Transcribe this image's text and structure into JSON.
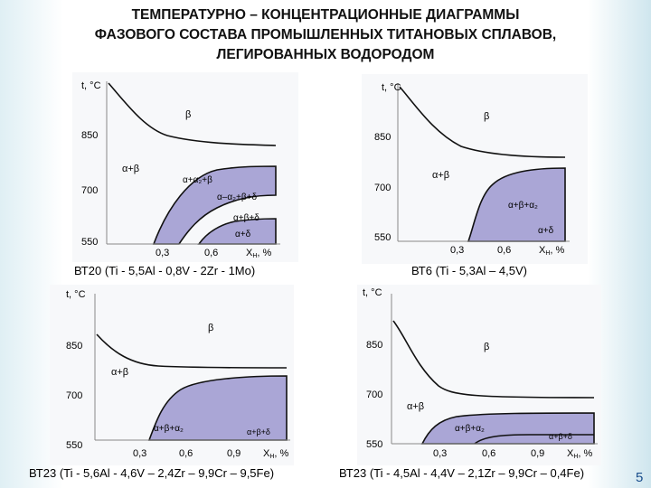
{
  "title": "ТЕМПЕРАТУРНО – КОНЦЕНТРАЦИОННЫЕ  ДИАГРАММЫ\nФАЗОВОГО СОСТАВА ПРОМЫШЛЕННЫХ ТИТАНОВЫХ СПЛАВОВ,\nЛЕГИРОВАННЫХ ВОДОРОДОМ",
  "colors": {
    "phase_fill": "#aaa6d6",
    "curve": "#111111",
    "accent": "#1a4e8c"
  },
  "axis": {
    "ylabel": "t, °C",
    "xlabel": "X",
    "xlabel_sub": "H",
    "xunit": ", %"
  },
  "slide_number": "5",
  "panels": [
    {
      "caption": "ВТ20 (Ti - 5,5Al - 0,8V - 2Zr - 1Mo)",
      "yticks": [
        "850",
        "700",
        "550"
      ],
      "xticks": [
        "0,3",
        "0,6"
      ],
      "labels": [
        "β",
        "α+β",
        "α+α₂+β",
        "α–α₂+β+δ",
        "α+β+δ",
        "α+δ"
      ]
    },
    {
      "caption": "ВТ6 (Ti - 5,3Al – 4,5V)",
      "yticks": [
        "850",
        "700",
        "550"
      ],
      "xticks": [
        "0,3",
        "0,6"
      ],
      "labels": [
        "β",
        "α+β",
        "α+β+α₂",
        "α+δ"
      ]
    },
    {
      "caption": "ВТ23 (Ti - 5,6Al - 4,6V – 2,4Zr – 9,9Cr – 9,5Fe)",
      "yticks": [
        "850",
        "700",
        "550"
      ],
      "xticks": [
        "0,3",
        "0,6",
        "0,9"
      ],
      "labels": [
        "β",
        "α+β",
        "α+β+α₂",
        "α+β+δ"
      ]
    },
    {
      "caption": "ВТ23 (Ti - 4,5Al - 4,4V – 2,1Zr – 9,9Cr – 0,4Fe)",
      "yticks": [
        "850",
        "700",
        "550"
      ],
      "xticks": [
        "0,3",
        "0,6",
        "0,9"
      ],
      "labels": [
        "β",
        "α+β",
        "α+β+α₂",
        "α+β+δ"
      ]
    }
  ]
}
